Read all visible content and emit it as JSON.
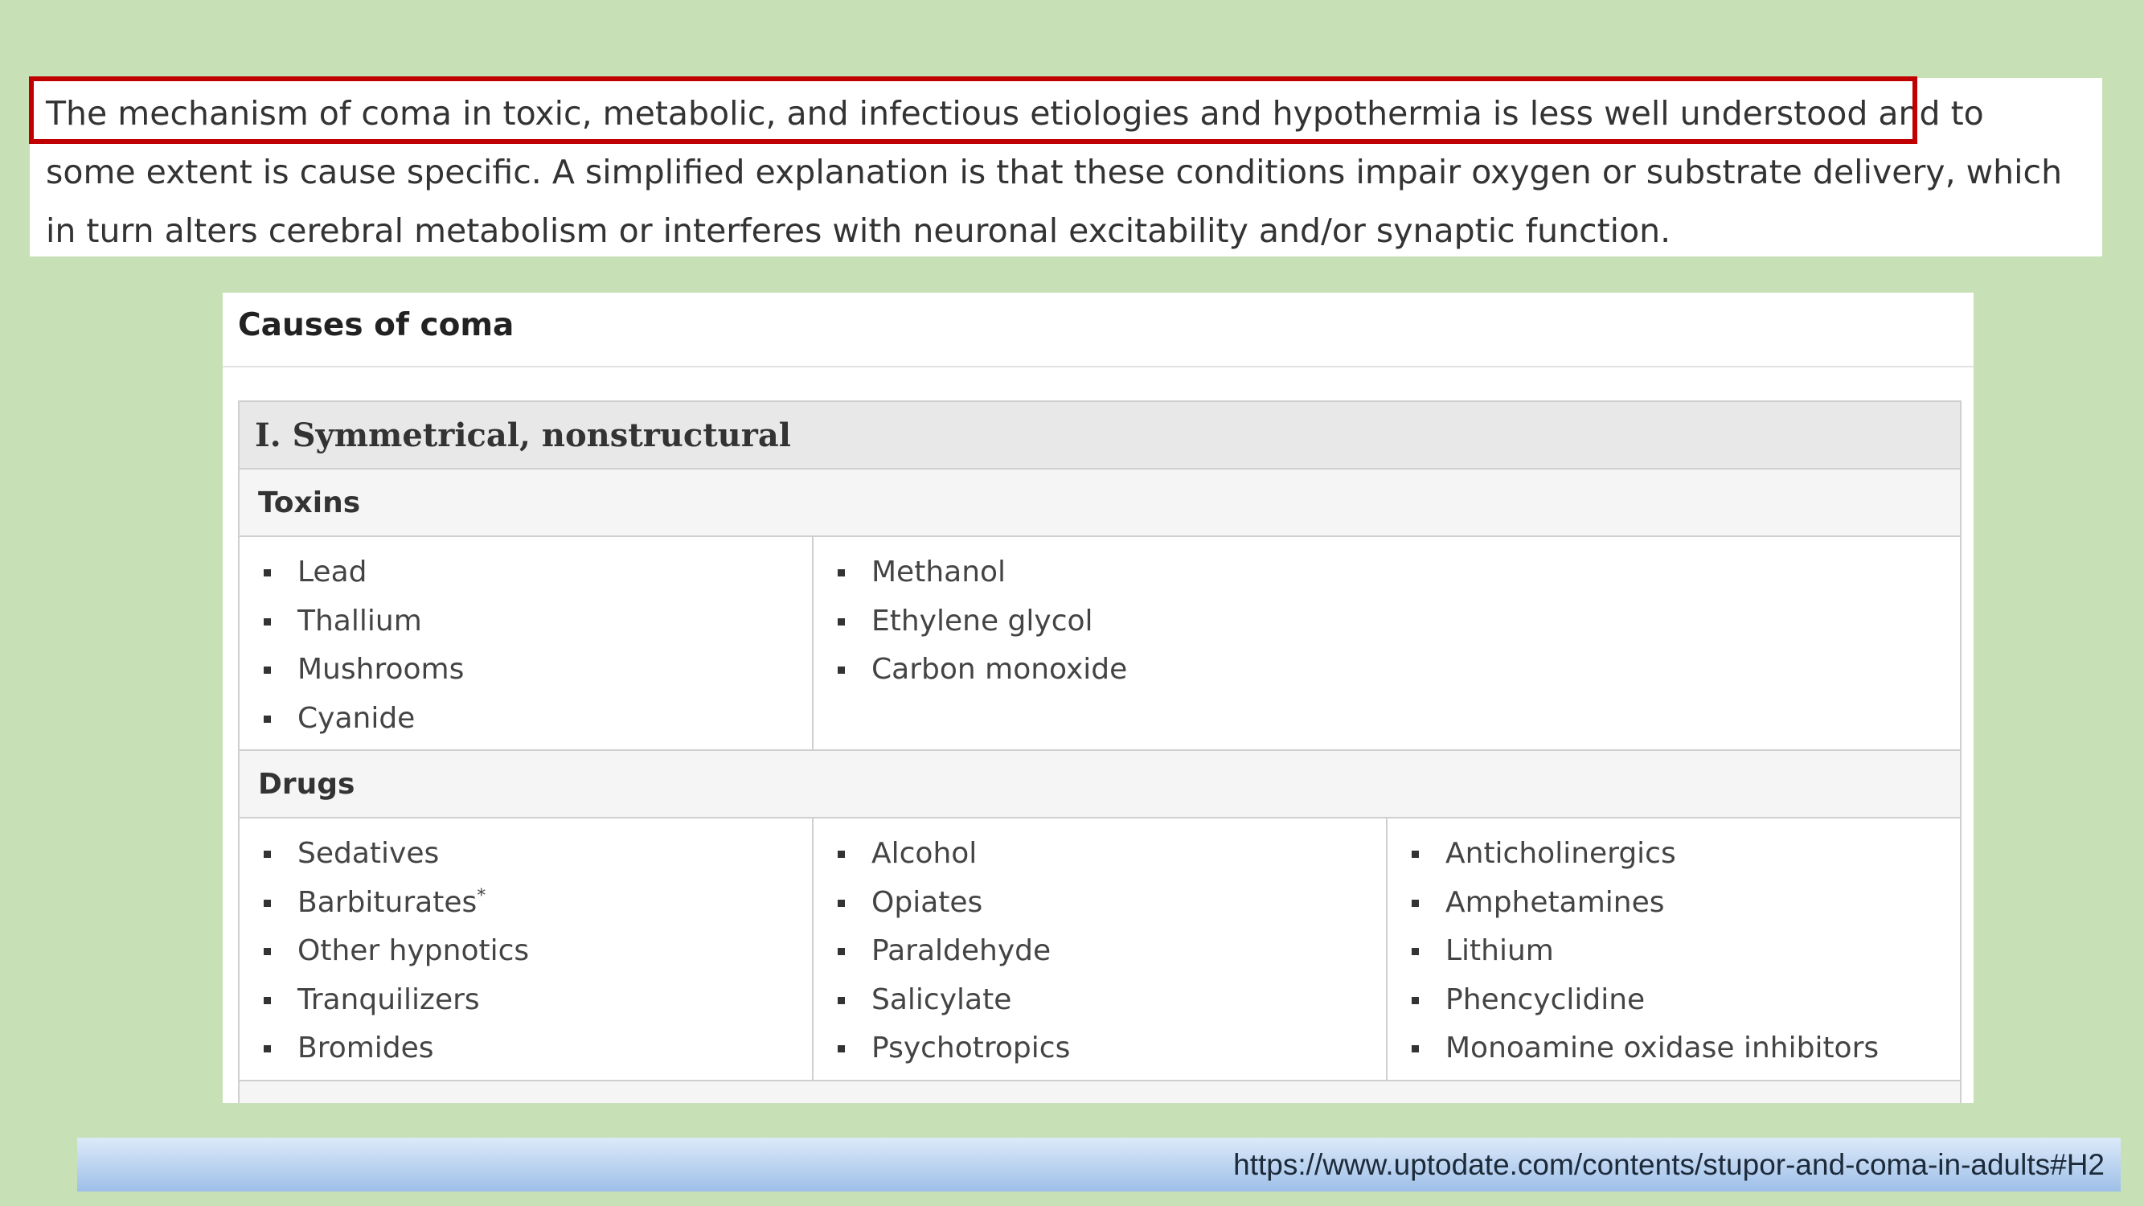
{
  "paragraph": {
    "highlighted_text": "The mechanism of coma in toxic, metabolic, and infectious etiologies and hypothermia is less well understood",
    "line1_rest": "and to",
    "line2": "some extent is cause specific. A simplified explanation is that these conditions impair oxygen or substrate delivery, which",
    "line3": "in turn alters cerebral metabolism or interferes with neuronal excitability and/or synaptic function."
  },
  "card": {
    "title": "Causes of coma",
    "section_title": "I. Symmetrical, nonstructural",
    "toxins": {
      "heading": "Toxins",
      "col1": [
        "Lead",
        "Thallium",
        "Mushrooms",
        "Cyanide"
      ],
      "col2": [
        "Methanol",
        "Ethylene glycol",
        "Carbon monoxide"
      ]
    },
    "drugs": {
      "heading": "Drugs",
      "col1": [
        "Sedatives",
        "Barbiturates",
        "Other hypnotics",
        "Tranquilizers",
        "Bromides"
      ],
      "barbiturates_mark": "*",
      "col2": [
        "Alcohol",
        "Opiates",
        "Paraldehyde",
        "Salicylate",
        "Psychotropics"
      ],
      "col3": [
        "Anticholinergics",
        "Amphetamines",
        "Lithium",
        "Phencyclidine",
        "Monoamine oxidase inhibitors"
      ]
    }
  },
  "footer": {
    "url": "https://www.uptodate.com/contents/stupor-and-coma-in-adults#H2"
  },
  "colors": {
    "background": "#c8e0b6",
    "highlight_border": "#c00000"
  }
}
